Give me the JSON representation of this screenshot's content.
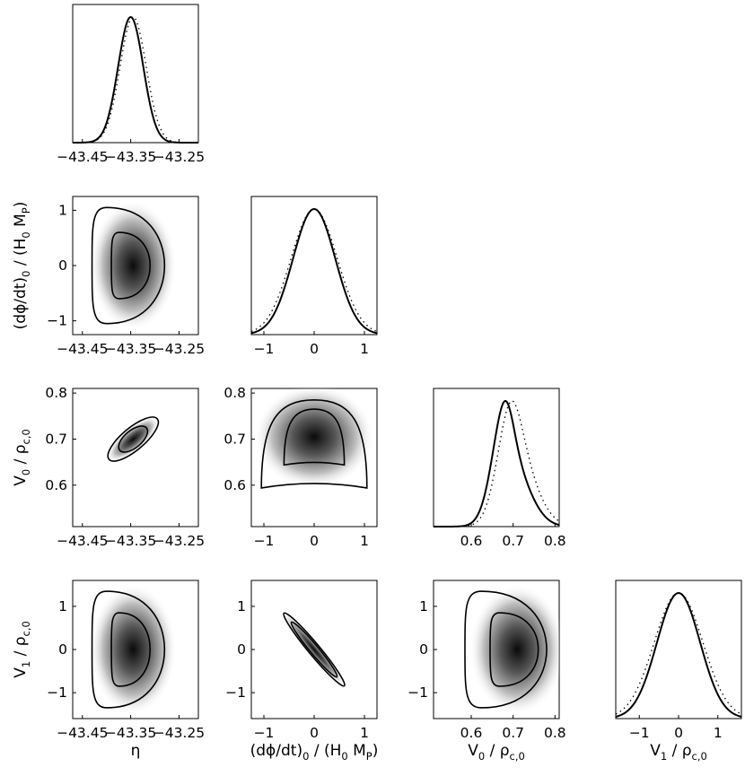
{
  "chart_data": {
    "type": "corner",
    "parameters": [
      {
        "id": "eta",
        "ticks": [
          -43.45,
          -43.35,
          -43.25
        ],
        "tick_labels": [
          "−43.45",
          "−43.35",
          "−43.25"
        ],
        "range": [
          -43.47,
          -43.21
        ]
      },
      {
        "id": "dphidt",
        "ticks": [
          -1,
          0,
          1
        ],
        "tick_labels": [
          "−1",
          "0",
          "1"
        ],
        "range": [
          -1.25,
          1.25
        ]
      },
      {
        "id": "V0",
        "ticks": [
          0.6,
          0.7,
          0.8
        ],
        "tick_labels": [
          "0.6",
          "0.7",
          "0.8"
        ],
        "range": [
          0.51,
          0.81
        ]
      },
      {
        "id": "V1",
        "ticks": [
          -1,
          0,
          1
        ],
        "tick_labels": [
          "−1",
          "0",
          "1"
        ],
        "range": [
          -1.6,
          1.6
        ]
      }
    ],
    "axis_labels": {
      "eta": {
        "main": "η",
        "sub": ""
      },
      "dphidt": {
        "main": "(dϕ/dt)",
        "sub": "0",
        "tail": " / (H",
        "sub2": "0",
        "tail2": " M",
        "sub3": "P",
        "end": ")"
      },
      "V0": {
        "main": "V",
        "sub": "0",
        "tail": " / ρ",
        "sub2": "c,0"
      },
      "V1": {
        "main": "V",
        "sub": "1",
        "tail": " / ρ",
        "sub2": "c,0"
      }
    },
    "marginals": [
      {
        "param": "eta",
        "solid": {
          "mean": -43.35,
          "sigma": 0.026
        },
        "dotted": {
          "mean": -43.345,
          "sigma": 0.027
        }
      },
      {
        "param": "dphidt",
        "solid": {
          "mean": 0.0,
          "sigma": 0.42
        },
        "dotted": {
          "mean": 0.0,
          "sigma": 0.46
        }
      },
      {
        "param": "V0",
        "solid": {
          "mean": 0.695,
          "sigma": 0.043,
          "skew": -3.2
        },
        "dotted": {
          "mean": 0.71,
          "sigma": 0.045,
          "skew": -2.4
        }
      },
      {
        "param": "V1",
        "solid": {
          "mean": 0.0,
          "sigma": 0.55
        },
        "dotted": {
          "mean": 0.0,
          "sigma": 0.62
        }
      }
    ],
    "joint": [
      {
        "x": "eta",
        "y": "dphidt",
        "cx": -43.345,
        "cy": 0.0,
        "outer": {
          "x0": -43.43,
          "x1": -43.28,
          "y0": -1.05,
          "y1": 1.05
        },
        "inner": {
          "x0": -43.39,
          "x1": -43.31,
          "y0": -0.6,
          "y1": 0.6
        },
        "shape": "dshape"
      },
      {
        "x": "eta",
        "y": "V0",
        "cx": -43.345,
        "cy": 0.7,
        "corr": 0.8,
        "outer": {
          "sx": 0.05,
          "sy": 0.055
        },
        "inner": {
          "sx": 0.028,
          "sy": 0.03
        },
        "shape": "ellipse"
      },
      {
        "x": "dphidt",
        "y": "V0",
        "cx": 0.0,
        "cy": 0.705,
        "outer": {
          "x0": -1.05,
          "x1": 1.05,
          "y0": 0.59,
          "y1": 0.785
        },
        "inner": {
          "x0": -0.6,
          "x1": 0.6,
          "y0": 0.64,
          "y1": 0.765
        },
        "shape": "dome"
      },
      {
        "x": "eta",
        "y": "V1",
        "cx": -43.345,
        "cy": 0.0,
        "outer": {
          "x0": -43.43,
          "x1": -43.28,
          "y0": -1.35,
          "y1": 1.35
        },
        "inner": {
          "x0": -43.39,
          "x1": -43.31,
          "y0": -0.85,
          "y1": 0.85
        },
        "shape": "dshape"
      },
      {
        "x": "dphidt",
        "y": "V1",
        "cx": 0.0,
        "cy": 0.0,
        "corr": -0.99,
        "outer": {
          "sx": 0.6,
          "sy": 0.85
        },
        "inner": {
          "sx": 0.45,
          "sy": 0.64
        },
        "shape": "bar"
      },
      {
        "x": "V0",
        "y": "V1",
        "cx": 0.71,
        "cy": 0.0,
        "outer": {
          "x0": 0.585,
          "x1": 0.78,
          "y0": -1.35,
          "y1": 1.35
        },
        "inner": {
          "x0": 0.645,
          "x1": 0.76,
          "y0": -0.85,
          "y1": 0.85
        },
        "shape": "dshape"
      }
    ]
  }
}
